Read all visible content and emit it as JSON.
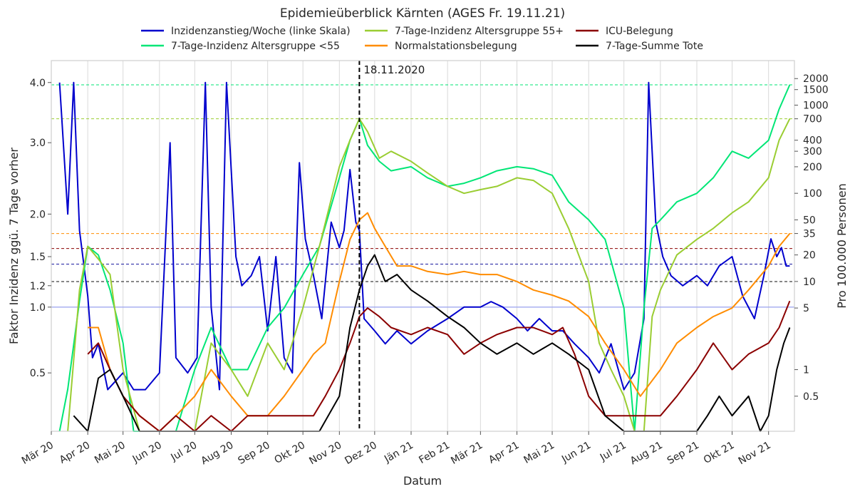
{
  "chart_data": {
    "type": "line",
    "title": "Epidemieüberblick Kärnten (AGES Fr. 19.11.21)",
    "xlabel": "Datum",
    "ylabel_left": "Faktor Inzidenz ggü. 7 Tage vorher",
    "ylabel_right": "Pro 100.000 Personen",
    "x_tick_labels": [
      "Mär 20",
      "Apr 20",
      "Mai 20",
      "Jun 20",
      "Jul 20",
      "Aug 20",
      "Sep 20",
      "Okt 20",
      "Nov 20",
      "Dez 20",
      "Jän 21",
      "Feb 21",
      "Mär 21",
      "Apr 21",
      "Mai 21",
      "Jun 21",
      "Jul 21",
      "Aug 21",
      "Sep 21",
      "Okt 21",
      "Nov 21"
    ],
    "y_left_ticks": [
      {
        "label": "0.5",
        "value": 0.5
      },
      {
        "label": "1.0",
        "value": 1.0
      },
      {
        "label": "1.2",
        "value": 1.2
      },
      {
        "label": "1.5",
        "value": 1.5
      },
      {
        "label": "2.0",
        "value": 2.0
      },
      {
        "label": "3.0",
        "value": 3.0
      },
      {
        "label": "4.0",
        "value": 4.0
      }
    ],
    "y_right_ticks": [
      "0.5",
      "1",
      "5",
      "10",
      "20",
      "35",
      "50",
      "100",
      "200",
      "300",
      "400",
      "700",
      "1000",
      "1500",
      "2000"
    ],
    "y_right_scale": "log",
    "grid": true,
    "legend_position": "top",
    "annotation": {
      "label": "18.11.2020",
      "x": "18.11.2020"
    },
    "reference_lines": [
      {
        "series": "Inzidenzanstieg/Woche (linke Skala)",
        "value": 1.0,
        "color": "#a0a8f0"
      },
      {
        "series": "Inzidenzanstieg/Woche (linke Skala)",
        "value": 1.42,
        "color": "#1a1aa0"
      },
      {
        "series": "7-Tage-Summe Tote",
        "value": 1.24,
        "color": "#111111"
      },
      {
        "series": "ICU-Belegung",
        "value": 1.59,
        "color": "#8b0000"
      },
      {
        "series": "Normalstationsbelegung",
        "value": 35,
        "color": "#ff8c00"
      },
      {
        "series": "7-Tage-Inzidenz Altersgruppe 55+",
        "value": 700,
        "color": "#9acd32"
      },
      {
        "series": "7-Tage-Inzidenz Altersgruppe <55",
        "value": 1700,
        "color": "#00e676"
      }
    ],
    "series": [
      {
        "name": "Inzidenzanstieg/Woche (linke Skala)",
        "color": "#0000cd",
        "axis": "left",
        "x": [
          "2020-03-08",
          "2020-03-15",
          "2020-03-20",
          "2020-03-25",
          "2020-04-01",
          "2020-04-05",
          "2020-04-10",
          "2020-04-18",
          "2020-05-01",
          "2020-05-10",
          "2020-05-20",
          "2020-06-01",
          "2020-06-10",
          "2020-06-15",
          "2020-06-25",
          "2020-07-03",
          "2020-07-10",
          "2020-07-15",
          "2020-07-22",
          "2020-07-28",
          "2020-08-05",
          "2020-08-10",
          "2020-08-18",
          "2020-08-25",
          "2020-09-01",
          "2020-09-08",
          "2020-09-15",
          "2020-09-22",
          "2020-09-28",
          "2020-10-03",
          "2020-10-10",
          "2020-10-17",
          "2020-10-25",
          "2020-11-01",
          "2020-11-05",
          "2020-11-10",
          "2020-11-15",
          "2020-11-18",
          "2020-11-22",
          "2020-12-01",
          "2020-12-10",
          "2020-12-20",
          "2021-01-01",
          "2021-01-15",
          "2021-02-01",
          "2021-02-15",
          "2021-03-01",
          "2021-03-10",
          "2021-03-20",
          "2021-04-01",
          "2021-04-10",
          "2021-04-20",
          "2021-05-01",
          "2021-05-10",
          "2021-05-20",
          "2021-06-01",
          "2021-06-10",
          "2021-06-20",
          "2021-07-01",
          "2021-07-10",
          "2021-07-18",
          "2021-07-22",
          "2021-07-28",
          "2021-08-03",
          "2021-08-10",
          "2021-08-20",
          "2021-09-01",
          "2021-09-10",
          "2021-09-20",
          "2021-10-01",
          "2021-10-10",
          "2021-10-20",
          "2021-10-28",
          "2021-11-03",
          "2021-11-08",
          "2021-11-12",
          "2021-11-16",
          "2021-11-19"
        ],
        "values": [
          4.0,
          2.0,
          4.0,
          1.8,
          1.1,
          0.6,
          0.7,
          0.4,
          0.5,
          0.4,
          0.4,
          0.5,
          3.0,
          0.6,
          0.5,
          0.6,
          4.0,
          1.0,
          0.4,
          4.0,
          1.5,
          1.2,
          1.3,
          1.5,
          0.8,
          1.5,
          0.6,
          0.5,
          2.7,
          1.7,
          1.3,
          0.9,
          1.9,
          1.6,
          1.8,
          2.6,
          1.9,
          1.8,
          0.9,
          0.8,
          0.7,
          0.8,
          0.7,
          0.8,
          0.9,
          1.0,
          1.0,
          1.05,
          1.0,
          0.9,
          0.8,
          0.9,
          0.8,
          0.8,
          0.7,
          0.6,
          0.5,
          0.7,
          0.4,
          0.5,
          0.9,
          4.0,
          1.9,
          1.5,
          1.3,
          1.2,
          1.3,
          1.2,
          1.4,
          1.5,
          1.1,
          0.9,
          1.3,
          1.7,
          1.5,
          1.6,
          1.4,
          1.4
        ]
      },
      {
        "name": "7-Tage-Inzidenz Altersgruppe <55",
        "color": "#00e676",
        "axis": "right",
        "x": [
          "2020-03-08",
          "2020-03-15",
          "2020-03-25",
          "2020-04-01",
          "2020-04-10",
          "2020-04-20",
          "2020-05-01",
          "2020-05-10",
          "2020-05-20",
          "2020-06-01",
          "2020-06-15",
          "2020-07-01",
          "2020-07-15",
          "2020-08-01",
          "2020-08-15",
          "2020-09-01",
          "2020-09-15",
          "2020-10-01",
          "2020-10-15",
          "2020-11-01",
          "2020-11-10",
          "2020-11-18",
          "2020-11-25",
          "2020-12-05",
          "2020-12-15",
          "2021-01-01",
          "2021-01-15",
          "2021-02-01",
          "2021-02-15",
          "2021-03-01",
          "2021-03-15",
          "2021-04-01",
          "2021-04-15",
          "2021-05-01",
          "2021-05-15",
          "2021-06-01",
          "2021-06-15",
          "2021-07-01",
          "2021-07-10",
          "2021-07-18",
          "2021-07-25",
          "2021-08-01",
          "2021-08-15",
          "2021-09-01",
          "2021-09-15",
          "2021-10-01",
          "2021-10-15",
          "2021-11-01",
          "2021-11-10",
          "2021-11-19"
        ],
        "values": [
          0.2,
          0.6,
          6,
          25,
          20,
          8,
          2,
          0.2,
          0.2,
          0.2,
          0.2,
          1,
          3,
          1,
          1,
          3,
          5,
          12,
          25,
          150,
          400,
          700,
          350,
          230,
          180,
          200,
          150,
          120,
          130,
          150,
          180,
          200,
          190,
          160,
          80,
          50,
          30,
          5,
          0.2,
          5,
          40,
          50,
          80,
          100,
          150,
          300,
          250,
          400,
          900,
          1700
        ]
      },
      {
        "name": "7-Tage-Inzidenz Altersgruppe 55+",
        "color": "#9acd32",
        "axis": "right",
        "x": [
          "2020-03-15",
          "2020-03-25",
          "2020-04-01",
          "2020-04-10",
          "2020-04-20",
          "2020-05-01",
          "2020-05-15",
          "2020-06-01",
          "2020-06-15",
          "2020-07-01",
          "2020-07-15",
          "2020-08-01",
          "2020-08-15",
          "2020-09-01",
          "2020-09-15",
          "2020-10-01",
          "2020-10-15",
          "2020-11-01",
          "2020-11-10",
          "2020-11-18",
          "2020-11-25",
          "2020-12-05",
          "2020-12-15",
          "2021-01-01",
          "2021-01-15",
          "2021-02-01",
          "2021-02-15",
          "2021-03-01",
          "2021-03-15",
          "2021-04-01",
          "2021-04-15",
          "2021-05-01",
          "2021-05-15",
          "2021-06-01",
          "2021-06-10",
          "2021-06-20",
          "2021-07-01",
          "2021-07-10",
          "2021-07-18",
          "2021-07-25",
          "2021-08-01",
          "2021-08-15",
          "2021-09-01",
          "2021-09-15",
          "2021-10-01",
          "2021-10-15",
          "2021-11-01",
          "2021-11-10",
          "2021-11-19"
        ],
        "values": [
          0.2,
          8,
          25,
          18,
          12,
          1,
          0.2,
          0.2,
          0.2,
          0.2,
          2,
          1,
          0.5,
          2,
          1,
          5,
          25,
          200,
          400,
          700,
          500,
          250,
          300,
          230,
          170,
          120,
          100,
          110,
          120,
          150,
          140,
          100,
          40,
          10,
          2,
          1,
          0.5,
          0.2,
          0.2,
          4,
          8,
          20,
          30,
          40,
          60,
          80,
          150,
          400,
          700
        ]
      },
      {
        "name": "Normalstationsbelegung",
        "color": "#ff8c00",
        "axis": "right",
        "x": [
          "2020-04-01",
          "2020-04-10",
          "2020-04-20",
          "2020-05-01",
          "2020-05-15",
          "2020-06-01",
          "2020-06-15",
          "2020-07-01",
          "2020-07-15",
          "2020-08-01",
          "2020-08-15",
          "2020-09-01",
          "2020-09-15",
          "2020-10-01",
          "2020-10-10",
          "2020-10-20",
          "2020-11-01",
          "2020-11-10",
          "2020-11-18",
          "2020-11-25",
          "2020-12-01",
          "2020-12-10",
          "2020-12-20",
          "2021-01-01",
          "2021-01-15",
          "2021-02-01",
          "2021-02-15",
          "2021-03-01",
          "2021-03-15",
          "2021-04-01",
          "2021-04-15",
          "2021-05-01",
          "2021-05-15",
          "2021-06-01",
          "2021-06-15",
          "2021-07-01",
          "2021-07-15",
          "2021-08-01",
          "2021-08-15",
          "2021-09-01",
          "2021-09-15",
          "2021-10-01",
          "2021-10-15",
          "2021-11-01",
          "2021-11-10",
          "2021-11-19"
        ],
        "values": [
          3,
          3,
          1,
          0.5,
          0.3,
          0.2,
          0.3,
          0.5,
          1,
          0.5,
          0.3,
          0.3,
          0.5,
          1,
          1.5,
          2,
          10,
          30,
          50,
          60,
          40,
          25,
          15,
          15,
          13,
          12,
          13,
          12,
          12,
          10,
          8,
          7,
          6,
          4,
          2,
          1,
          0.5,
          1,
          2,
          3,
          4,
          5,
          8,
          15,
          25,
          35
        ]
      },
      {
        "name": "ICU-Belegung",
        "color": "#8b0000",
        "axis": "right",
        "x": [
          "2020-04-01",
          "2020-04-10",
          "2020-04-20",
          "2020-05-01",
          "2020-05-15",
          "2020-06-01",
          "2020-06-15",
          "2020-07-01",
          "2020-07-15",
          "2020-08-01",
          "2020-08-15",
          "2020-09-01",
          "2020-09-15",
          "2020-10-01",
          "2020-10-10",
          "2020-10-20",
          "2020-11-01",
          "2020-11-10",
          "2020-11-18",
          "2020-11-25",
          "2020-12-05",
          "2020-12-15",
          "2021-01-01",
          "2021-01-15",
          "2021-02-01",
          "2021-02-15",
          "2021-03-01",
          "2021-03-15",
          "2021-04-01",
          "2021-04-15",
          "2021-05-01",
          "2021-05-10",
          "2021-05-20",
          "2021-06-01",
          "2021-06-15",
          "2021-07-01",
          "2021-07-15",
          "2021-08-01",
          "2021-08-15",
          "2021-09-01",
          "2021-09-15",
          "2021-10-01",
          "2021-10-15",
          "2021-11-01",
          "2021-11-10",
          "2021-11-19"
        ],
        "values": [
          1.5,
          2,
          1,
          0.5,
          0.3,
          0.2,
          0.3,
          0.2,
          0.3,
          0.2,
          0.3,
          0.3,
          0.3,
          0.3,
          0.3,
          0.5,
          1,
          2,
          4,
          5,
          4,
          3,
          2.5,
          3,
          2.5,
          1.5,
          2,
          2.5,
          3,
          3,
          2.5,
          3,
          1.5,
          0.5,
          0.3,
          0.3,
          0.3,
          0.3,
          0.5,
          1,
          2,
          1,
          1.5,
          2,
          3,
          6
        ]
      },
      {
        "name": "7-Tage-Summe Tote",
        "color": "#000000",
        "axis": "right",
        "x": [
          "2020-03-20",
          "2020-04-01",
          "2020-04-10",
          "2020-04-20",
          "2020-05-01",
          "2020-05-15",
          "2020-06-01",
          "2020-07-01",
          "2020-08-01",
          "2020-09-01",
          "2020-10-01",
          "2020-10-15",
          "2020-11-01",
          "2020-11-10",
          "2020-11-18",
          "2020-11-25",
          "2020-12-01",
          "2020-12-10",
          "2020-12-20",
          "2021-01-01",
          "2021-01-15",
          "2021-02-01",
          "2021-02-15",
          "2021-03-01",
          "2021-03-15",
          "2021-04-01",
          "2021-04-15",
          "2021-05-01",
          "2021-05-15",
          "2021-06-01",
          "2021-06-15",
          "2021-07-01",
          "2021-07-15",
          "2021-08-01",
          "2021-08-15",
          "2021-09-01",
          "2021-09-10",
          "2021-09-20",
          "2021-10-01",
          "2021-10-15",
          "2021-10-25",
          "2021-11-01",
          "2021-11-08",
          "2021-11-14",
          "2021-11-19"
        ],
        "values": [
          0.3,
          0.2,
          0.8,
          1,
          0.5,
          0.2,
          0.2,
          0.2,
          0.2,
          0.2,
          0.2,
          0.2,
          0.5,
          3,
          8,
          15,
          20,
          10,
          12,
          8,
          6,
          4,
          3,
          2,
          1.5,
          2,
          1.5,
          2,
          1.5,
          1,
          0.3,
          0.2,
          0.2,
          0.2,
          0.2,
          0.2,
          0.3,
          0.5,
          0.3,
          0.5,
          0.2,
          0.3,
          1,
          2,
          3
        ]
      }
    ]
  }
}
